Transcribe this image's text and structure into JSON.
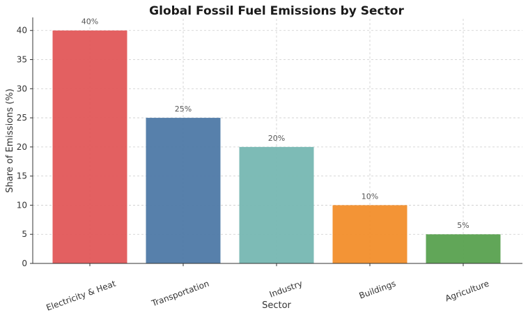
{
  "chart_data": {
    "type": "bar",
    "title": "Global Fossil Fuel Emissions by Sector",
    "xlabel": "Sector",
    "ylabel": "Share of Emissions (%)",
    "categories": [
      "Electricity & Heat",
      "Transportation",
      "Industry",
      "Buildings",
      "Agriculture"
    ],
    "values": [
      40,
      25,
      20,
      10,
      5
    ],
    "data_labels": [
      "40%",
      "25%",
      "20%",
      "10%",
      "5%"
    ],
    "colors": [
      "#e15759",
      "#4e79a7",
      "#76b7b2",
      "#f28e2b",
      "#59a14f"
    ],
    "ylim": [
      0,
      42
    ],
    "yticks": [
      0,
      5,
      10,
      15,
      20,
      25,
      30,
      35,
      40
    ],
    "grid": true,
    "legend": "none"
  }
}
